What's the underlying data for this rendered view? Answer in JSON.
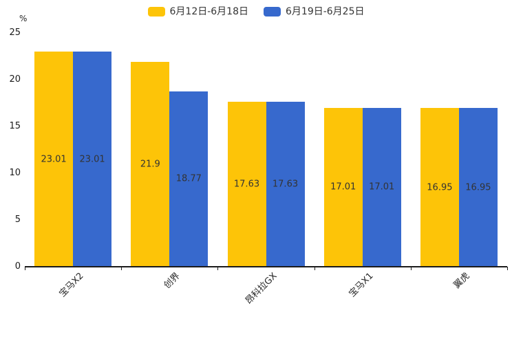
{
  "chart_data": {
    "type": "bar",
    "title": "",
    "xlabel": "",
    "ylabel": "%",
    "ylim": [
      0,
      25
    ],
    "yticks": [
      0,
      5,
      10,
      15,
      20,
      25
    ],
    "grid": false,
    "legend_position": "top",
    "value_label_position": "inside-center",
    "categories": [
      "宝马X2",
      "创界",
      "昂科拉GX",
      "宝马X1",
      "翼虎"
    ],
    "series": [
      {
        "name": "6月12日-6月18日",
        "color": "#FDC408",
        "values": [
          23.01,
          21.9,
          17.63,
          17.01,
          16.95
        ]
      },
      {
        "name": "6月19日-6月25日",
        "color": "#3769CD",
        "values": [
          23.01,
          18.77,
          17.63,
          17.01,
          16.95
        ]
      }
    ],
    "colors": {
      "value_label": "#333333",
      "axis": "#1a1a1a"
    }
  }
}
